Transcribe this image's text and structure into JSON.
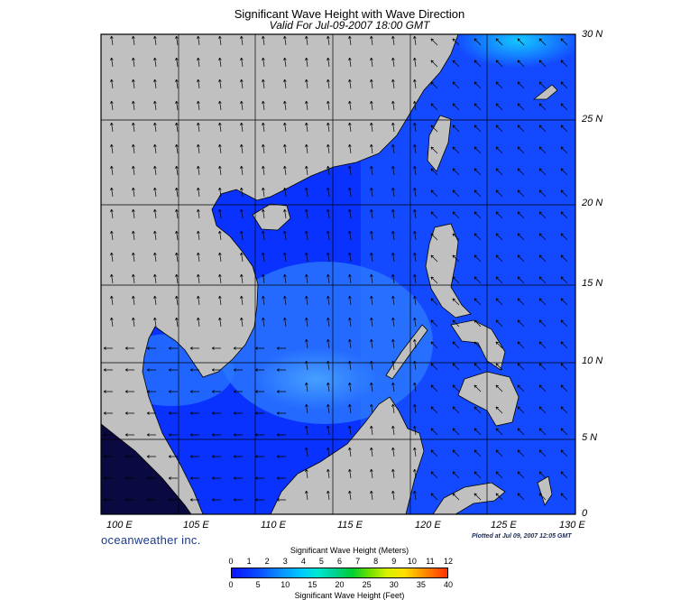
{
  "header": {
    "title": "Significant Wave Height with Wave Direction",
    "subtitle": "Valid For Jul-09-2007 18:00 GMT"
  },
  "axes": {
    "lat_labels": [
      "30 N",
      "25 N",
      "20 N",
      "15 N",
      "10 N",
      "5 N",
      "0"
    ],
    "lon_labels": [
      "100 E",
      "105 E",
      "110 E",
      "115 E",
      "120 E",
      "125 E",
      "130 E"
    ]
  },
  "footer": {
    "brand": "oceanweather inc.",
    "plotted": "Plotted at Jul 09, 2007 12:05 GMT"
  },
  "colorbar": {
    "meters_title": "Significant Wave Height (Meters)",
    "meters_ticks": [
      "0",
      "1",
      "2",
      "3",
      "4",
      "5",
      "6",
      "7",
      "8",
      "9",
      "10",
      "11",
      "12"
    ],
    "feet_ticks": [
      "0",
      "5",
      "10",
      "15",
      "20",
      "25",
      "30",
      "35",
      "40"
    ],
    "feet_title": "Significant Wave Height (Feet)"
  },
  "colors": {
    "land": "#c0c0c0",
    "sea_deep": "#0a32ff",
    "sea_mid": "#1a64ff",
    "sea_light": "#3c8cff",
    "grid": "#000000"
  }
}
